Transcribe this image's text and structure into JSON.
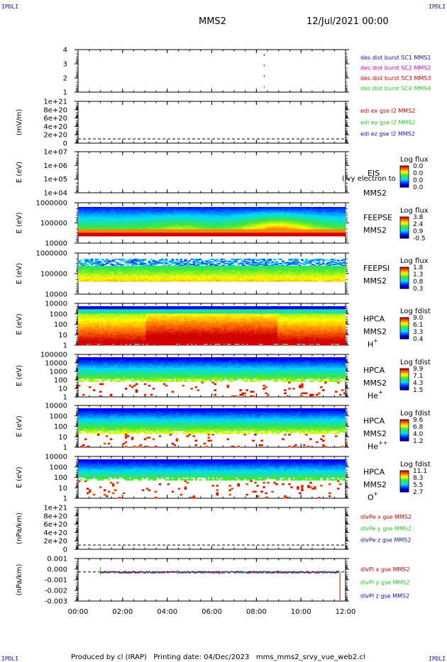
{
  "header": {
    "corner_tl": "IPDLI",
    "corner_tr": "IPDLI",
    "corner_bl": "IPDLI",
    "corner_br": "IPDLI",
    "spacecraft": "MMS2",
    "date_time": "12/Jul/2021 00:00"
  },
  "footer": {
    "text": "Produced by cl (IRAP)   Printing date: 04/Dec/2023   mms_mms2_srvy_vue_web2.cl"
  },
  "x_axis": {
    "range_hours": [
      0,
      12
    ],
    "ticks": [
      "00:00",
      "02:00",
      "04:00",
      "06:00",
      "08:00",
      "10:00",
      "12:00"
    ]
  },
  "colors": {
    "blue": "#1010cc",
    "magenta": "#cc00cc",
    "red": "#dd0000",
    "green": "#22cc22"
  },
  "chart_data": [
    {
      "type": "scatter",
      "id": "burst",
      "yticks": [
        "4",
        "3",
        "2",
        "1"
      ],
      "ylim": [
        0.5,
        4.5
      ],
      "legend": [
        {
          "label": "des dist burst SC1 MMS1",
          "color": "#1010cc"
        },
        {
          "label": "des dist burst SC2 MMS2",
          "color": "#cc00cc"
        },
        {
          "label": "des dist burst SC3 MMS3",
          "color": "#dd0000"
        },
        {
          "label": "des dist burst SC4 MMS4",
          "color": "#22cc22"
        }
      ],
      "points": [
        {
          "x": 8.33,
          "y": 4
        },
        {
          "x": 8.33,
          "y": 3
        },
        {
          "x": 8.33,
          "y": 2
        },
        {
          "x": 8.33,
          "y": 1
        }
      ]
    },
    {
      "type": "line",
      "id": "efield",
      "ylabel": "(mV/m)",
      "yticks": [
        "1e+21",
        "8e+20",
        "6e+20",
        "4e+20",
        "2e+20",
        "0"
      ],
      "legend": [
        {
          "label": "edi ex gse l2 MMS2",
          "color": "#dd0000"
        },
        {
          "label": "edi ey gse l2 MMS2",
          "color": "#22cc22"
        },
        {
          "label": "edi ez gse l2 MMS2",
          "color": "#1010cc"
        }
      ]
    },
    {
      "type": "heatmap",
      "id": "eis",
      "ylabel": "E (eV)",
      "yticks": [
        "1e+07",
        "1e+06",
        "1e+05",
        "1e+04"
      ],
      "instrument": "EIS",
      "overlay_text": "(ivy electron to",
      "sc": "MMS2",
      "cb_title": "Log flux",
      "cb_ticks": [
        "0.0",
        "0.0",
        "0.0",
        "0.0"
      ]
    },
    {
      "type": "heatmap",
      "id": "feepse",
      "ylabel": "E (eV)",
      "yticks": [
        "1000000",
        "100000",
        "10000"
      ],
      "instrument": "FEEPSE",
      "sc": "MMS2",
      "cb_title": "Log flux",
      "cb_ticks": [
        "3.8",
        "2.4",
        "0.9",
        "-0.5"
      ]
    },
    {
      "type": "heatmap",
      "id": "feepsi",
      "ylabel": "E (eV)",
      "yticks": [
        "1000000",
        "100000",
        "10000"
      ],
      "instrument": "FEEPSI",
      "sc": "MMS2",
      "cb_title": "Log flux",
      "cb_ticks": [
        "1.8",
        "1.3",
        "0.8",
        "0.3"
      ]
    },
    {
      "type": "heatmap",
      "id": "hpca_h",
      "ylabel": "E (eV)",
      "yticks": [
        "10000",
        "1000",
        "100",
        "10",
        "1"
      ],
      "instrument": "HPCA",
      "sc": "MMS2",
      "species": "H",
      "charge": "+",
      "cb_title": "Log fdist",
      "cb_ticks": [
        "9.0",
        "6.1",
        "3.3",
        "0.4"
      ]
    },
    {
      "type": "heatmap",
      "id": "hpca_he",
      "ylabel": "E (eV)",
      "yticks": [
        "100000",
        "10000",
        "1000",
        "100",
        "10",
        "1"
      ],
      "instrument": "HPCA",
      "sc": "MMS2",
      "species": "He",
      "charge": "+",
      "cb_title": "Log fdist",
      "cb_ticks": [
        "9.9",
        "7.1",
        "4.3",
        "1.5"
      ]
    },
    {
      "type": "heatmap",
      "id": "hpca_hepp",
      "ylabel": "E (eV)",
      "yticks": [
        "10000",
        "1000",
        "100",
        "10",
        "1"
      ],
      "instrument": "HPCA",
      "sc": "MMS2",
      "species": "He",
      "charge": "++",
      "cb_title": "Log fdist",
      "cb_ticks": [
        "9.6",
        "6.8",
        "4.0",
        "1.2"
      ]
    },
    {
      "type": "heatmap",
      "id": "hpca_o",
      "ylabel": "E (eV)",
      "yticks": [
        "10000",
        "1000",
        "100",
        "10",
        "1"
      ],
      "instrument": "HPCA",
      "sc": "MMS2",
      "species": "O",
      "charge": "+",
      "cb_title": "Log fdist",
      "cb_ticks": [
        "11.1",
        "8.3",
        "5.5",
        "2.7"
      ]
    },
    {
      "type": "line",
      "id": "divpe",
      "ylabel": "(nPa/km)",
      "yticks": [
        "1e+21",
        "8e+20",
        "6e+20",
        "4e+20",
        "2e+20",
        "0"
      ],
      "legend": [
        {
          "label": "dlvPe x gse MMS2",
          "color": "#dd0000"
        },
        {
          "label": "dlvPe y gse MMS2",
          "color": "#22cc22"
        },
        {
          "label": "dlvPe z gse MMS2",
          "color": "#1010cc"
        }
      ]
    },
    {
      "type": "line",
      "id": "divpi",
      "ylabel": "(nPa/km)",
      "yticks": [
        "0.001",
        "0.000",
        "-0.001",
        "-0.002",
        "-0.003"
      ],
      "ylim": [
        -0.0037,
        0.0017
      ],
      "legend": [
        {
          "label": "dlvPl x gse MMS2",
          "color": "#dd0000"
        },
        {
          "label": "dlvPl y gse MMS2",
          "color": "#22cc22"
        },
        {
          "label": "dlvPl z gse MMS2",
          "color": "#1010cc"
        }
      ],
      "data_start_hour": 1.0,
      "data_end_hour": 11.75,
      "spike": {
        "x": 11.75,
        "y": -0.0036
      }
    }
  ]
}
